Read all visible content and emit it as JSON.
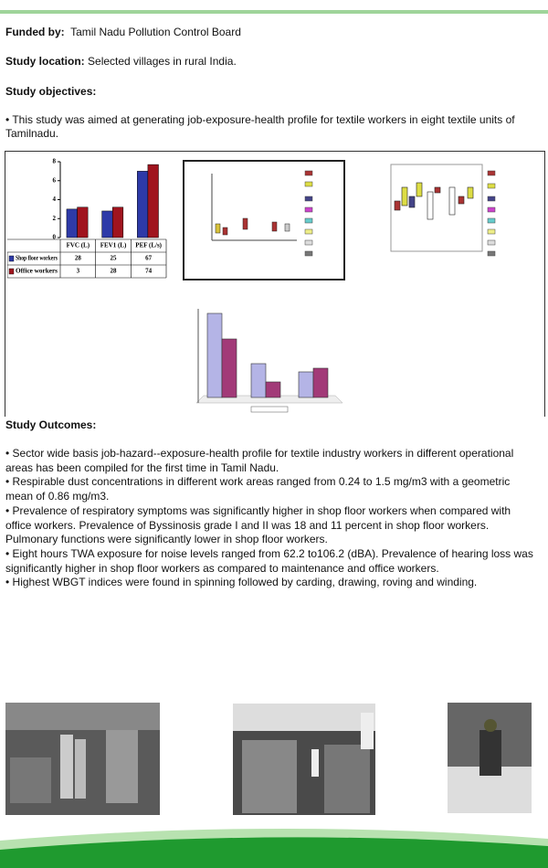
{
  "funding": {
    "label": "Funded by:",
    "value": "Tamil Nadu Pollution Control Board"
  },
  "location": {
    "label": "Study location:",
    "value": "Selected villages in rural India."
  },
  "objectives": {
    "heading": "Study objectives:",
    "items": [
      "• This study was aimed at generating job-exposure-health profile for textile workers in eight textile units of Tamilnadu."
    ]
  },
  "chart_data": {
    "type": "bar",
    "categories": [
      "FVC (L)",
      "FEV1 (L)",
      "PEF (L/s)"
    ],
    "series": [
      {
        "name": "Shop floor workers",
        "color": "#2e3aa8",
        "values": [
          3,
          2.8,
          7
        ]
      },
      {
        "name": "Office workers",
        "color": "#a0141e",
        "values": [
          3.2,
          3.2,
          7.7
        ]
      }
    ],
    "ylim": [
      0,
      8
    ],
    "yticks": [
      0,
      2,
      4,
      6,
      8
    ],
    "table": [
      [
        "28",
        "25",
        "67"
      ],
      [
        "3",
        "28",
        "74"
      ]
    ]
  },
  "outcomes": {
    "heading": "Study Outcomes:",
    "items": [
      "• Sector wide basis job-hazard--exposure-health profile for textile industry workers in different operational areas has been compiled for the first time in Tamil Nadu.",
      "• Respirable dust concentrations in different work areas ranged from 0.24 to 1.5 mg/m3 with a geometric mean of  0.86 mg/m3.",
      "• Prevalence of respiratory symptoms was significantly higher in shop floor workers when compared with office workers. Prevalence of Byssinosis grade I and II was 18 and 11 percent in shop floor workers. Pulmonary functions were significantly lower in shop floor workers.",
      "• Eight hours TWA exposure for noise levels ranged from 62.2 to106.2 (dBA). Prevalence of hearing loss was significantly higher in shop floor workers as compared to maintenance and office workers.",
      "• Highest WBGT indices were found in spinning followed by carding, drawing, roving and winding."
    ]
  }
}
